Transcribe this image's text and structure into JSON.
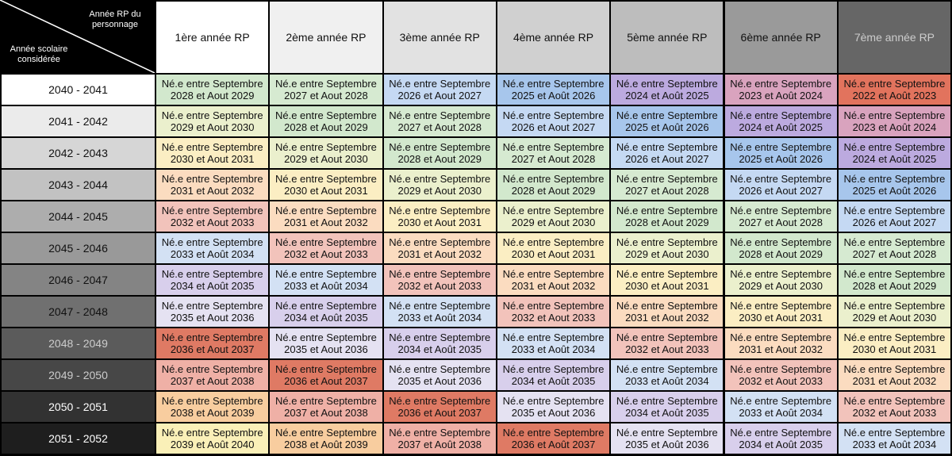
{
  "table": {
    "corner_top": "Année RP du personnage",
    "corner_bottom": "Année scolaire considérée",
    "columns": [
      "1ère année RP",
      "2ème année RP",
      "3ème année RP",
      "4ème année RP",
      "5ème année RP",
      "6ème année RP",
      "7ème année RP"
    ],
    "rows": [
      {
        "label": "2040 - 2041",
        "cells": [
          [
            "Né.e entre Septembre",
            "2028 et Aout 2029"
          ],
          [
            "Né.e entre Septembre",
            "2027 et Aout 2028"
          ],
          [
            "Né.e entre Septembre",
            "2026 et Aout 2027"
          ],
          [
            "Né.e entre Septembre",
            "2025 et Août 2026"
          ],
          [
            "Né.e entre Septembre",
            "2024 et Août 2025"
          ],
          [
            "Né.e entre Septembre",
            "2023 et Août 2024"
          ],
          [
            "Né.e entre Septembre",
            "2022 et Août 2023"
          ]
        ],
        "colors": [
          "#d2e8cd",
          "#d6ead1",
          "#c5d9f3",
          "#a7c6ec",
          "#bcaadf",
          "#d9a3be",
          "#e2735d"
        ]
      },
      {
        "label": "2041 - 2042",
        "cells": [
          [
            "Né.e entre Septembre",
            "2029 et Aout 2030"
          ],
          [
            "Né.e entre Septembre",
            "2028 et Aout 2029"
          ],
          [
            "Né.e entre Septembre",
            "2027 et Aout 2028"
          ],
          [
            "Né.e entre Septembre",
            "2026 et Aout 2027"
          ],
          [
            "Né.e entre Septembre",
            "2025 et Août 2026"
          ],
          [
            "Né.e entre Septembre",
            "2024 et Août 2025"
          ],
          [
            "Né.e entre Septembre",
            "2023 et Août 2024"
          ]
        ],
        "colors": [
          "#ebf0cd",
          "#d2e8cd",
          "#d6ead1",
          "#c5d9f3",
          "#a7c6ec",
          "#bcaadf",
          "#d9a3be"
        ]
      },
      {
        "label": "2042 - 2043",
        "cells": [
          [
            "Né.e entre Septembre",
            "2030 et Aout 2031"
          ],
          [
            "Né.e entre Septembre",
            "2029 et Aout 2030"
          ],
          [
            "Né.e entre Septembre",
            "2028 et Aout 2029"
          ],
          [
            "Né.e entre Septembre",
            "2027 et Aout 2028"
          ],
          [
            "Né.e entre Septembre",
            "2026 et Aout 2027"
          ],
          [
            "Né.e entre Septembre",
            "2025 et Août 2026"
          ],
          [
            "Né.e entre Septembre",
            "2024 et Août 2025"
          ]
        ],
        "colors": [
          "#fbeec3",
          "#ebf0cd",
          "#d2e8cd",
          "#d6ead1",
          "#c5d9f3",
          "#a7c6ec",
          "#bcaadf"
        ]
      },
      {
        "label": "2043 - 2044",
        "cells": [
          [
            "Né.e entre Septembre",
            "2031 et Aout 2032"
          ],
          [
            "Né.e entre Septembre",
            "2030 et Aout 2031"
          ],
          [
            "Né.e entre Septembre",
            "2029 et Aout 2030"
          ],
          [
            "Né.e entre Septembre",
            "2028 et Aout 2029"
          ],
          [
            "Né.e entre Septembre",
            "2027 et Aout 2028"
          ],
          [
            "Né.e entre Septembre",
            "2026 et Aout 2027"
          ],
          [
            "Né.e entre Septembre",
            "2025 et Août 2026"
          ]
        ],
        "colors": [
          "#fbdcc0",
          "#fbeec3",
          "#ebf0cd",
          "#d2e8cd",
          "#d6ead1",
          "#c5d9f3",
          "#a7c6ec"
        ]
      },
      {
        "label": "2044 - 2045",
        "cells": [
          [
            "Né.e entre Septembre",
            "2032 et Aout 2033"
          ],
          [
            "Né.e entre Septembre",
            "2031 et Aout 2032"
          ],
          [
            "Né.e entre Septembre",
            "2030 et Aout 2031"
          ],
          [
            "Né.e entre Septembre",
            "2029 et Aout 2030"
          ],
          [
            "Né.e entre Septembre",
            "2028 et Aout 2029"
          ],
          [
            "Né.e entre Septembre",
            "2027 et Aout 2028"
          ],
          [
            "Né.e entre Septembre",
            "2026 et Aout 2027"
          ]
        ],
        "colors": [
          "#f2c3bb",
          "#fbdcc0",
          "#fbeec3",
          "#ebf0cd",
          "#d2e8cd",
          "#d6ead1",
          "#c5d9f3"
        ]
      },
      {
        "label": "2045 - 2046",
        "cells": [
          [
            "Né.e entre Septembre",
            "2033 et Août 2034"
          ],
          [
            "Né.e entre Septembre",
            "2032 et Aout 2033"
          ],
          [
            "Né.e entre Septembre",
            "2031 et Aout 2032"
          ],
          [
            "Né.e entre Septembre",
            "2030 et Aout 2031"
          ],
          [
            "Né.e entre Septembre",
            "2029 et Aout 2030"
          ],
          [
            "Né.e entre Septembre",
            "2028 et Aout 2029"
          ],
          [
            "Né.e entre Septembre",
            "2027 et Aout 2028"
          ]
        ],
        "colors": [
          "#d3e1f4",
          "#f2c3bb",
          "#fbdcc0",
          "#fbeec3",
          "#ebf0cd",
          "#d2e8cd",
          "#d6ead1"
        ]
      },
      {
        "label": "2046 - 2047",
        "cells": [
          [
            "Né.e entre Septembre",
            "2034 et Août 2035"
          ],
          [
            "Né.e entre Septembre",
            "2033 et Août 2034"
          ],
          [
            "Né.e entre Septembre",
            "2032 et Aout 2033"
          ],
          [
            "Né.e entre Septembre",
            "2031 et Aout 2032"
          ],
          [
            "Né.e entre Septembre",
            "2030 et Aout 2031"
          ],
          [
            "Né.e entre Septembre",
            "2029 et Aout 2030"
          ],
          [
            "Né.e entre Septembre",
            "2028 et Aout 2029"
          ]
        ],
        "colors": [
          "#d8cfec",
          "#d3e1f4",
          "#f2c3bb",
          "#fbdcc0",
          "#fbeec3",
          "#ebf0cd",
          "#d2e8cd"
        ]
      },
      {
        "label": "2047 - 2048",
        "cells": [
          [
            "Né.e entre Septembre",
            "2035 et Aout 2036"
          ],
          [
            "Né.e entre Septembre",
            "2034 et Août 2035"
          ],
          [
            "Né.e entre Septembre",
            "2033 et Août 2034"
          ],
          [
            "Né.e entre Septembre",
            "2032 et Aout 2033"
          ],
          [
            "Né.e entre Septembre",
            "2031 et Aout 2032"
          ],
          [
            "Né.e entre Septembre",
            "2030 et Aout 2031"
          ],
          [
            "Né.e entre Septembre",
            "2029 et Aout 2030"
          ]
        ],
        "colors": [
          "#e5e2f2",
          "#d8cfec",
          "#d3e1f4",
          "#f2c3bb",
          "#fbdcc0",
          "#fbeec3",
          "#ebf0cd"
        ]
      },
      {
        "label": "2048 - 2049",
        "cells": [
          [
            "Né.e entre Septembre",
            "2036 et Aout 2037"
          ],
          [
            "Né.e entre Septembre",
            "2035 et Aout 2036"
          ],
          [
            "Né.e entre Septembre",
            "2034 et Août 2035"
          ],
          [
            "Né.e entre Septembre",
            "2033 et Août 2034"
          ],
          [
            "Né.e entre Septembre",
            "2032 et Aout 2033"
          ],
          [
            "Né.e entre Septembre",
            "2031 et Aout 2032"
          ],
          [
            "Né.e entre Septembre",
            "2030 et Aout 2031"
          ]
        ],
        "colors": [
          "#df7a64",
          "#e5e2f2",
          "#d8cfec",
          "#d3e1f4",
          "#f2c3bb",
          "#fbdcc0",
          "#fbeec3"
        ]
      },
      {
        "label": "2049 - 2050",
        "cells": [
          [
            "Né.e entre Septembre",
            "2037 et Aout 2038"
          ],
          [
            "Né.e entre Septembre",
            "2036 et Aout 2037"
          ],
          [
            "Né.e entre Septembre",
            "2035 et Aout 2036"
          ],
          [
            "Né.e entre Septembre",
            "2034 et Août 2035"
          ],
          [
            "Né.e entre Septembre",
            "2033 et Août 2034"
          ],
          [
            "Né.e entre Septembre",
            "2032 et Aout 2033"
          ],
          [
            "Né.e entre Septembre",
            "2031 et Aout 2032"
          ]
        ],
        "colors": [
          "#efb0a6",
          "#df7a64",
          "#e5e2f2",
          "#d8cfec",
          "#d3e1f4",
          "#f2c3bb",
          "#fbdcc0"
        ]
      },
      {
        "label": "2050 - 2051",
        "cells": [
          [
            "Né.e entre Septembre",
            "2038 et Aout 2039"
          ],
          [
            "Né.e entre Septembre",
            "2037 et Aout 2038"
          ],
          [
            "Né.e entre Septembre",
            "2036 et Aout 2037"
          ],
          [
            "Né.e entre Septembre",
            "2035 et Aout 2036"
          ],
          [
            "Né.e entre Septembre",
            "2034 et Août 2035"
          ],
          [
            "Né.e entre Septembre",
            "2033 et Août 2034"
          ],
          [
            "Né.e entre Septembre",
            "2032 et Aout 2033"
          ]
        ],
        "colors": [
          "#f8cd9f",
          "#efb0a6",
          "#df7a64",
          "#e5e2f2",
          "#d8cfec",
          "#d3e1f4",
          "#f2c3bb"
        ]
      },
      {
        "label": "2051 - 2052",
        "cells": [
          [
            "Né.e entre Septembre",
            "2039 et Août 2040"
          ],
          [
            "Né.e entre Septembre",
            "2038 et Août 2039"
          ],
          [
            "Né.e entre Septembre",
            "2037 et Août 2038"
          ],
          [
            "Né.e entre Septembre",
            "2036 et Août 2037"
          ],
          [
            "Né.e entre Septembre",
            "2035 et Août 2036"
          ],
          [
            "Né.e entre Septembre",
            "2034 et Août 2035"
          ],
          [
            "Né.e entre Septembre",
            "2033 et Août 2034"
          ]
        ],
        "colors": [
          "#faf0b8",
          "#f8cd9f",
          "#efb0a6",
          "#df7a64",
          "#e5e2f2",
          "#d8cfec",
          "#d3e1f4"
        ]
      }
    ]
  }
}
